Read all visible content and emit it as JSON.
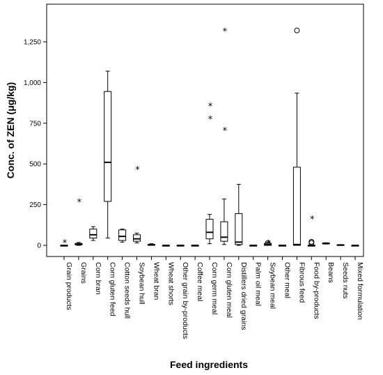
{
  "chart_data": {
    "type": "box",
    "xlabel": "Feed ingredients",
    "ylabel": "Conc. of ZEN (μg/kg)",
    "ylim": [
      -50,
      1450
    ],
    "yticks": [
      0,
      250,
      500,
      750,
      1000,
      1250
    ],
    "ytick_labels": [
      "0",
      "250",
      "500",
      "750",
      "1,000",
      "1,250"
    ],
    "grid": false,
    "categories": [
      "Grain products",
      "Grains",
      "Corn bran",
      "Corn gluten feed",
      "Cotton seeds hull",
      "Soybean hull",
      "Wheat bran",
      "Wheat shorts",
      "Other grain by-products",
      "Coffee meal",
      "Corn germ meal",
      "Corn gluten meal",
      "Distillers dried grains",
      "Palm oil meal",
      "Soybean meal",
      "Other meal",
      "Fibrous feed",
      "Food by-products",
      "Beans",
      "Seeds nuts",
      "Mixed formulation"
    ],
    "boxes": [
      {
        "min": 0,
        "q1": 0,
        "median": 0,
        "q3": 0,
        "max": 0,
        "outliers": [],
        "extremes": [
          30
        ]
      },
      {
        "min": 0,
        "q1": 3,
        "median": 7,
        "q3": 12,
        "max": 18,
        "outliers": [],
        "extremes": [
          280
        ]
      },
      {
        "min": 30,
        "q1": 45,
        "median": 65,
        "q3": 100,
        "max": 115,
        "outliers": [],
        "extremes": []
      },
      {
        "min": 45,
        "q1": 270,
        "median": 510,
        "q3": 945,
        "max": 1070,
        "outliers": [],
        "extremes": []
      },
      {
        "min": 20,
        "q1": 30,
        "median": 55,
        "q3": 95,
        "max": 100,
        "outliers": [],
        "extremes": []
      },
      {
        "min": 15,
        "q1": 25,
        "median": 40,
        "q3": 65,
        "max": 75,
        "outliers": [],
        "extremes": [
          480
        ]
      },
      {
        "min": 0,
        "q1": 0,
        "median": 3,
        "q3": 6,
        "max": 10,
        "outliers": [],
        "extremes": []
      },
      {
        "min": 0,
        "q1": 0,
        "median": 0,
        "q3": 0,
        "max": 0,
        "outliers": [],
        "extremes": []
      },
      {
        "min": 0,
        "q1": 0,
        "median": 0,
        "q3": 0,
        "max": 0,
        "outliers": [],
        "extremes": []
      },
      {
        "min": 0,
        "q1": 0,
        "median": 0,
        "q3": 0,
        "max": 0,
        "outliers": [],
        "extremes": []
      },
      {
        "min": 10,
        "q1": 40,
        "median": 80,
        "q3": 160,
        "max": 190,
        "outliers": [],
        "extremes": [
          790,
          870
        ]
      },
      {
        "min": 5,
        "q1": 25,
        "median": 50,
        "q3": 145,
        "max": 285,
        "outliers": [],
        "extremes": [
          720,
          1330
        ]
      },
      {
        "min": 0,
        "q1": 5,
        "median": 20,
        "q3": 195,
        "max": 375,
        "outliers": [],
        "extremes": []
      },
      {
        "min": 0,
        "q1": 0,
        "median": 0,
        "q3": 0,
        "max": 0,
        "outliers": [],
        "extremes": []
      },
      {
        "min": 0,
        "q1": 0,
        "median": 4,
        "q3": 12,
        "max": 18,
        "outliers": [
          14
        ],
        "extremes": [
          28
        ]
      },
      {
        "min": 0,
        "q1": 0,
        "median": 0,
        "q3": 0,
        "max": 0,
        "outliers": [],
        "extremes": []
      },
      {
        "min": 0,
        "q1": 0,
        "median": 5,
        "q3": 480,
        "max": 935,
        "outliers": [
          1320
        ],
        "extremes": []
      },
      {
        "min": 0,
        "q1": 0,
        "median": 0,
        "q3": 0,
        "max": 0,
        "outliers": [
          15,
          22
        ],
        "extremes": [
          175
        ]
      },
      {
        "min": 8,
        "q1": 10,
        "median": 12,
        "q3": 14,
        "max": 16,
        "outliers": [],
        "extremes": []
      },
      {
        "min": 0,
        "q1": 0,
        "median": 2,
        "q3": 4,
        "max": 5,
        "outliers": [],
        "extremes": []
      },
      {
        "min": 0,
        "q1": 0,
        "median": 0,
        "q3": 0,
        "max": 0,
        "outliers": [],
        "extremes": []
      }
    ]
  }
}
